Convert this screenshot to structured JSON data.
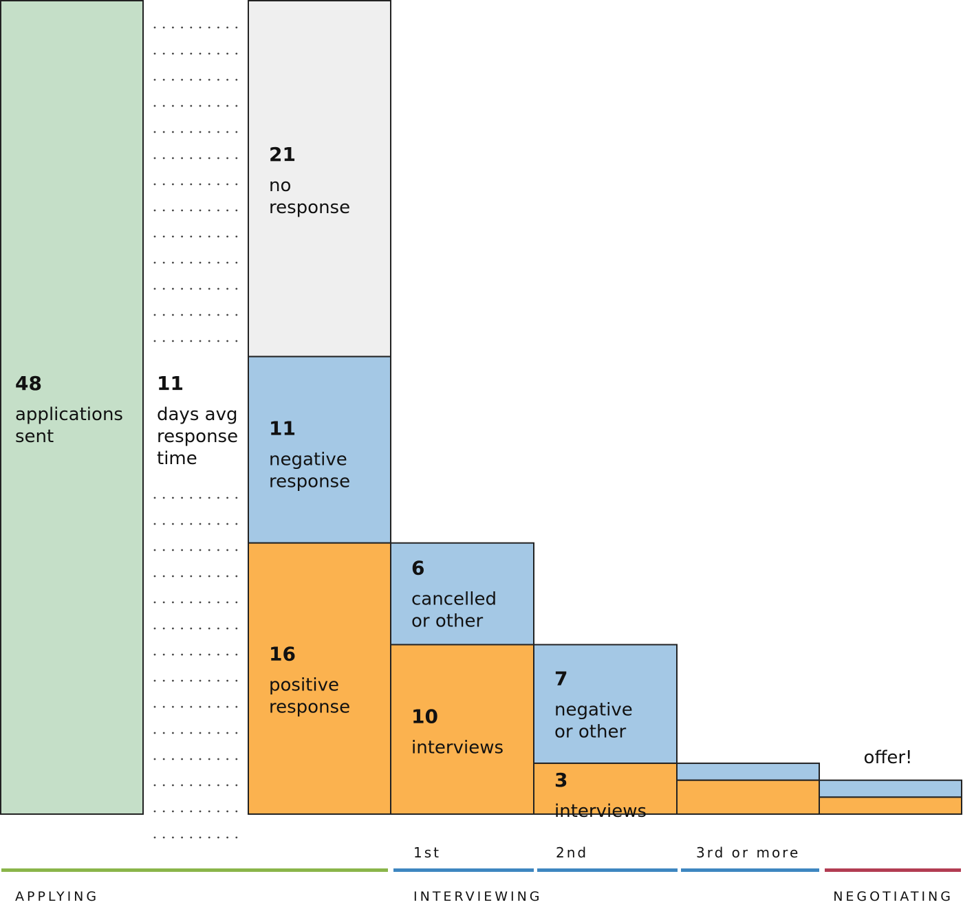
{
  "chart_data": {
    "type": "funnel",
    "colors": {
      "applications": "#c5dfc8",
      "no_response": "#efefef",
      "negative": "#a4c8e5",
      "positive": "#fbb24f",
      "applying_line": "#8ab54a",
      "interviewing_line": "#3e86c0",
      "negotiating_line": "#b23c52",
      "stroke": "#222222"
    },
    "applied": {
      "value": 48,
      "label_num": "48",
      "label_lines": [
        "applications",
        "sent"
      ]
    },
    "response_time": {
      "value": 11,
      "label_num": "11",
      "label_lines": [
        "days avg",
        "response",
        "time"
      ]
    },
    "responses": [
      {
        "key": "no_response",
        "value": 21,
        "label_num": "21",
        "label_lines": [
          "no",
          "response"
        ],
        "color": "no_response"
      },
      {
        "key": "negative",
        "value": 11,
        "label_num": "11",
        "label_lines": [
          "negative",
          "response"
        ],
        "color": "negative"
      },
      {
        "key": "positive",
        "value": 16,
        "label_num": "16",
        "label_lines": [
          "positive",
          "response"
        ],
        "color": "positive"
      }
    ],
    "rounds": [
      {
        "stage": "1st",
        "interviews": {
          "value": 10,
          "label_num": "10",
          "label_lines": [
            "interviews"
          ]
        },
        "other": {
          "value": 6,
          "label_num": "6",
          "label_lines": [
            "cancelled",
            "or other"
          ]
        }
      },
      {
        "stage": "2nd",
        "interviews": {
          "value": 3,
          "label_num": "3",
          "label_lines": [
            "interviews"
          ]
        },
        "other": {
          "value": 7,
          "label_num": "7",
          "label_lines": [
            "negative",
            "or other"
          ]
        }
      },
      {
        "stage": "3rd or more",
        "interviews": {
          "value": 2,
          "label_num": "",
          "label_lines": []
        },
        "other": {
          "value": 1,
          "label_num": "",
          "label_lines": []
        }
      },
      {
        "stage": "",
        "interviews": {
          "value": 1,
          "label_num": "",
          "label_lines": []
        },
        "other": {
          "value": 1,
          "label_num": "",
          "label_lines": []
        }
      }
    ],
    "offer_label": "offer!",
    "phases": [
      {
        "name": "APPLYING",
        "color": "applying_line"
      },
      {
        "name": "INTERVIEWING",
        "color": "interviewing_line"
      },
      {
        "name": "NEGOTIATING",
        "color": "negotiating_line"
      }
    ]
  }
}
